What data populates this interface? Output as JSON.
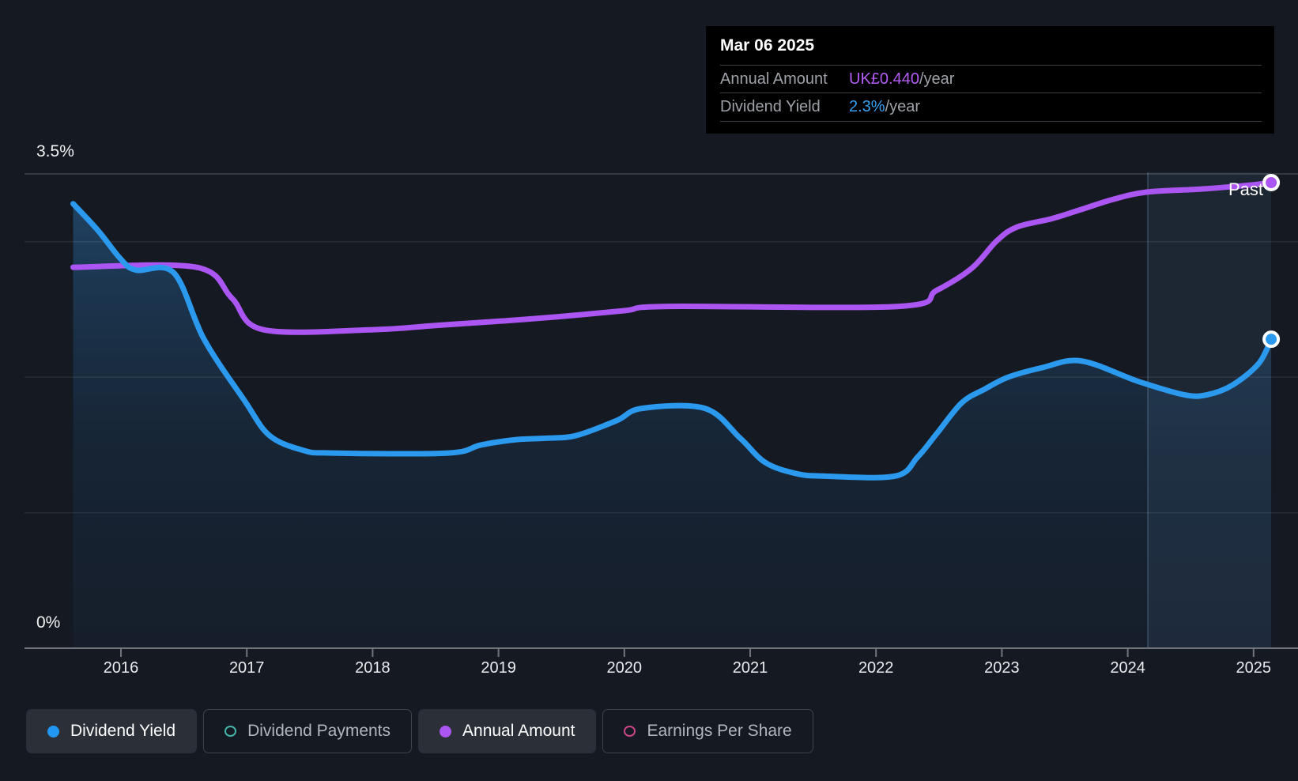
{
  "past": {
    "label": "Past"
  },
  "y_axis": {
    "top_label": "3.5%",
    "bottom_label": "0%",
    "unit": "%"
  },
  "x_axis": {
    "years": [
      "2016",
      "2017",
      "2018",
      "2019",
      "2020",
      "2021",
      "2022",
      "2023",
      "2024",
      "2025"
    ]
  },
  "tooltip": {
    "date": "Mar 06 2025",
    "rows": [
      {
        "label": "Annual Amount",
        "value": "UK£0.440",
        "suffix": "/year",
        "value_color": "#B45CF6"
      },
      {
        "label": "Dividend Yield",
        "value": "2.3%",
        "suffix": "/year",
        "value_color": "#33A1F2"
      }
    ]
  },
  "legend": {
    "items": [
      {
        "label": "Dividend Yield",
        "marker": "dot",
        "color": "#2196F3",
        "active": true
      },
      {
        "label": "Dividend Payments",
        "marker": "ring",
        "color": "#45B5A9",
        "active": false
      },
      {
        "label": "Annual Amount",
        "marker": "dot",
        "color": "#AB55F3",
        "active": true
      },
      {
        "label": "Earnings Per Share",
        "marker": "ring",
        "color": "#CC4687",
        "active": false
      }
    ]
  },
  "colors": {
    "background": "#151A22",
    "dividend_yield_line": "#2B99EE",
    "annual_amount_line": "#AB55F3",
    "area_fill_top": "rgba(45,120,185,0.42)",
    "area_fill_mid": "rgba(30,75,120,0.22)",
    "area_fill_bottom": "rgba(25,55,95,0.14)",
    "grid_faint": "rgba(255,255,255,0.08)",
    "grid_top": "rgba(255,255,255,0.18)",
    "axis_line": "#71757B",
    "past_band_fill": "rgba(109,158,210,0.10)",
    "past_band_edge": "rgba(147,183,222,0.30)",
    "marker_ring": "#FFFFFF"
  },
  "chart_data": {
    "type": "line",
    "title": "Dividend history with future estimate cutoff (hover date Mar 06 2025)",
    "x": {
      "tick_years": [
        2016,
        2017,
        2018,
        2019,
        2020,
        2021,
        2022,
        2023,
        2024,
        2025
      ],
      "data_start": 2015.62,
      "data_end": 2025.14
    },
    "y_left": {
      "unit": "%",
      "min": 0,
      "top_label_value": 3.5,
      "gridlines_pct": [
        3.5,
        3,
        2,
        1
      ],
      "baseline_pct": 0
    },
    "past_band": {
      "from_year": 2024.16,
      "to_year": 2025.14,
      "label": "Past"
    },
    "series": [
      {
        "name": "Dividend Yield",
        "unit": "%",
        "color_key": "dividend_yield_line",
        "area_fill": true,
        "end_marker": true,
        "points": [
          [
            2015.62,
            3.28
          ],
          [
            2015.82,
            3.08
          ],
          [
            2016.0,
            2.87
          ],
          [
            2016.12,
            2.79
          ],
          [
            2016.42,
            2.77
          ],
          [
            2016.66,
            2.28
          ],
          [
            2016.98,
            1.83
          ],
          [
            2017.18,
            1.57
          ],
          [
            2017.45,
            1.46
          ],
          [
            2017.68,
            1.44
          ],
          [
            2018.6,
            1.44
          ],
          [
            2018.86,
            1.5
          ],
          [
            2019.15,
            1.54
          ],
          [
            2019.4,
            1.55
          ],
          [
            2019.62,
            1.57
          ],
          [
            2019.94,
            1.68
          ],
          [
            2020.14,
            1.77
          ],
          [
            2020.64,
            1.77
          ],
          [
            2020.92,
            1.55
          ],
          [
            2021.12,
            1.37
          ],
          [
            2021.36,
            1.29
          ],
          [
            2021.58,
            1.27
          ],
          [
            2022.15,
            1.27
          ],
          [
            2022.33,
            1.41
          ],
          [
            2022.48,
            1.58
          ],
          [
            2022.68,
            1.81
          ],
          [
            2022.86,
            1.91
          ],
          [
            2023.05,
            2.0
          ],
          [
            2023.32,
            2.07
          ],
          [
            2023.63,
            2.12
          ],
          [
            2024.08,
            1.97
          ],
          [
            2024.45,
            1.87
          ],
          [
            2024.63,
            1.87
          ],
          [
            2024.83,
            1.94
          ],
          [
            2025.04,
            2.1
          ],
          [
            2025.14,
            2.28
          ]
        ]
      },
      {
        "name": "Annual Amount",
        "unit": "UK£/year",
        "color_key": "annual_amount_line",
        "area_fill": false,
        "end_marker": true,
        "points": [
          [
            2015.62,
            0.36
          ],
          [
            2016.6,
            0.36
          ],
          [
            2016.88,
            0.331
          ],
          [
            2017.13,
            0.301
          ],
          [
            2018.0,
            0.301
          ],
          [
            2018.5,
            0.305
          ],
          [
            2019.0,
            0.309
          ],
          [
            2019.45,
            0.313
          ],
          [
            2020.0,
            0.319
          ],
          [
            2020.35,
            0.323
          ],
          [
            2022.18,
            0.323
          ],
          [
            2022.48,
            0.338
          ],
          [
            2022.76,
            0.359
          ],
          [
            2022.96,
            0.385
          ],
          [
            2023.12,
            0.398
          ],
          [
            2023.4,
            0.406
          ],
          [
            2023.64,
            0.415
          ],
          [
            2023.88,
            0.424
          ],
          [
            2024.15,
            0.431
          ],
          [
            2024.6,
            0.434
          ],
          [
            2025.0,
            0.438
          ],
          [
            2025.14,
            0.44
          ]
        ]
      }
    ],
    "legend_entries": [
      "Dividend Yield",
      "Dividend Payments",
      "Annual Amount",
      "Earnings Per Share"
    ],
    "notes": "Dividend Payments and Earnings Per Share series are toggled off (not drawn)."
  }
}
